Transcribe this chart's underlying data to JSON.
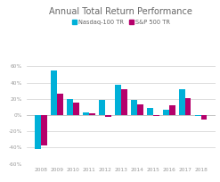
{
  "title": "Annual Total Return Performance",
  "years": [
    2008,
    2009,
    2010,
    2011,
    2012,
    2013,
    2014,
    2015,
    2016,
    2017,
    2018
  ],
  "nasdaq100": [
    -42,
    55,
    20,
    3,
    19,
    37,
    19,
    9,
    7,
    32,
    -1
  ],
  "sp500": [
    -37,
    26,
    15,
    2,
    -2,
    32,
    13,
    -1,
    12,
    21,
    -6
  ],
  "nasdaq_color": "#00b0d8",
  "sp500_color": "#b5006b",
  "legend_nasdaq": "Nasdaq-100 TR",
  "legend_sp500": "S&P 500 TR",
  "ylim": [
    -60,
    70
  ],
  "yticks": [
    -60,
    -40,
    -20,
    0,
    20,
    40,
    60
  ],
  "ytick_labels": [
    "-60%",
    "-40%",
    "-20%",
    "0%",
    "20%",
    "40%",
    "60%"
  ],
  "background_color": "#ffffff",
  "grid_color": "#d0d0d0",
  "title_fontsize": 7.0,
  "tick_fontsize": 4.2,
  "legend_fontsize": 4.8
}
